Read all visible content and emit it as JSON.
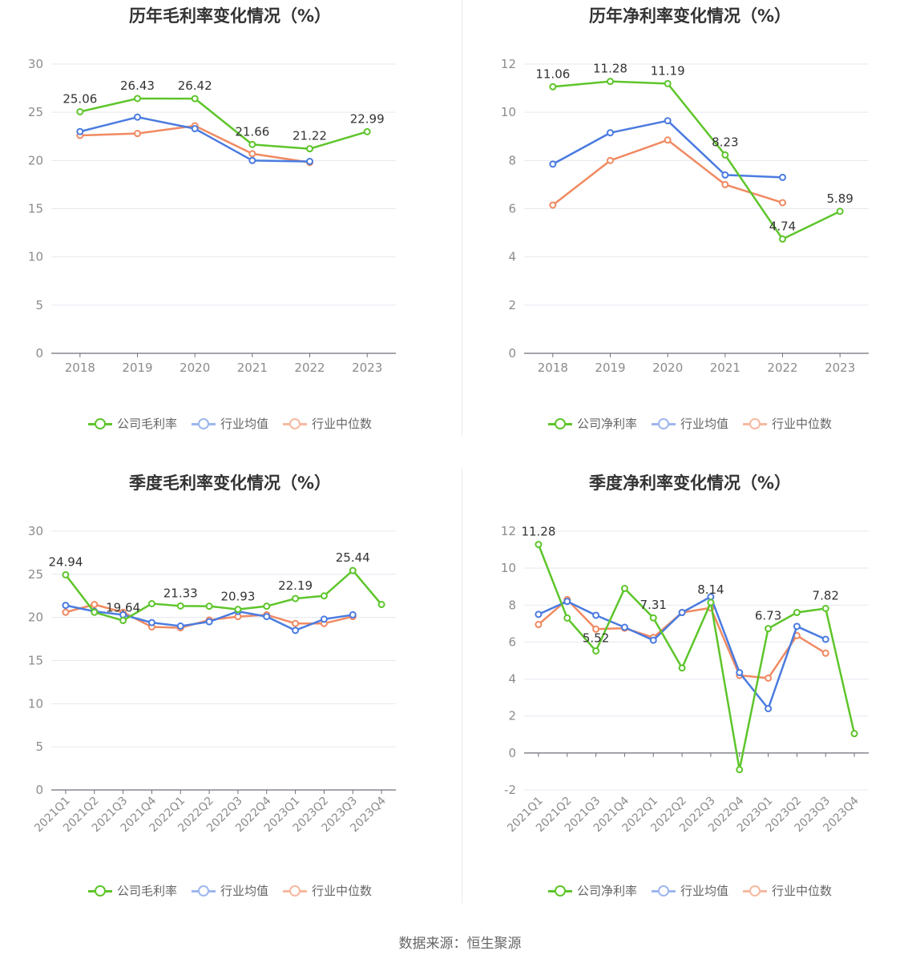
{
  "source_label": "数据来源：恒生聚源",
  "colors": {
    "company": "#5ec52b",
    "avg": "#4a7be0",
    "median": "#f08a62"
  },
  "chart_data": [
    {
      "type": "line",
      "title": "历年毛利率变化情况（%）",
      "categories": [
        "2018",
        "2019",
        "2020",
        "2021",
        "2022",
        "2023"
      ],
      "ylim": [
        0,
        30
      ],
      "yticks": [
        0,
        5,
        10,
        15,
        20,
        25,
        30
      ],
      "grid": true,
      "legend_position": "bottom",
      "series": [
        {
          "name": "公司毛利率",
          "values": [
            25.06,
            26.43,
            26.42,
            21.66,
            21.22,
            22.99
          ],
          "labels": [
            "25.06",
            "26.43",
            "26.42",
            "21.66",
            "21.22",
            "22.99"
          ]
        },
        {
          "name": "行业均值",
          "values": [
            23.0,
            24.5,
            23.3,
            20.0,
            19.9,
            null
          ]
        },
        {
          "name": "行业中位数",
          "values": [
            22.6,
            22.8,
            23.6,
            20.7,
            19.8,
            null
          ]
        }
      ]
    },
    {
      "type": "line",
      "title": "历年净利率变化情况（%）",
      "categories": [
        "2018",
        "2019",
        "2020",
        "2021",
        "2022",
        "2023"
      ],
      "ylim": [
        0,
        12
      ],
      "yticks": [
        0,
        2,
        4,
        6,
        8,
        10,
        12
      ],
      "grid": true,
      "legend_position": "bottom",
      "series": [
        {
          "name": "公司净利率",
          "values": [
            11.06,
            11.28,
            11.19,
            8.23,
            4.74,
            5.89
          ],
          "labels": [
            "11.06",
            "11.28",
            "11.19",
            "8.23",
            "4.74",
            "5.89"
          ]
        },
        {
          "name": "行业均值",
          "values": [
            7.85,
            9.15,
            9.65,
            7.4,
            7.3,
            null
          ]
        },
        {
          "name": "行业中位数",
          "values": [
            6.15,
            8.0,
            8.85,
            7.0,
            6.25,
            null
          ]
        }
      ]
    },
    {
      "type": "line",
      "title": "季度毛利率变化情况（%）",
      "categories": [
        "2021Q1",
        "2021Q2",
        "2021Q3",
        "2021Q4",
        "2022Q1",
        "2022Q2",
        "2022Q3",
        "2022Q4",
        "2023Q1",
        "2023Q2",
        "2023Q3",
        "2023Q4"
      ],
      "ylim": [
        0,
        30
      ],
      "yticks": [
        0,
        5,
        10,
        15,
        20,
        25,
        30
      ],
      "grid": true,
      "legend_position": "bottom",
      "series": [
        {
          "name": "公司毛利率",
          "values": [
            24.94,
            20.6,
            19.64,
            21.6,
            21.33,
            21.3,
            20.93,
            21.3,
            22.19,
            22.5,
            25.44,
            21.5
          ],
          "labels": [
            "24.94",
            "",
            "19.64",
            "",
            "21.33",
            "",
            "20.93",
            "",
            "22.19",
            "",
            "25.44",
            ""
          ]
        },
        {
          "name": "行业均值",
          "values": [
            21.4,
            20.7,
            20.3,
            19.4,
            19.0,
            19.5,
            20.7,
            20.1,
            18.5,
            19.8,
            20.3,
            null
          ]
        },
        {
          "name": "行业中位数",
          "values": [
            20.6,
            21.5,
            20.6,
            18.9,
            18.8,
            19.7,
            20.1,
            20.3,
            19.3,
            19.3,
            20.1,
            null
          ]
        }
      ]
    },
    {
      "type": "line",
      "title": "季度净利率变化情况（%）",
      "categories": [
        "2021Q1",
        "2021Q2",
        "2021Q3",
        "2021Q4",
        "2022Q1",
        "2022Q2",
        "2022Q3",
        "2022Q4",
        "2023Q1",
        "2023Q2",
        "2023Q3",
        "2023Q4"
      ],
      "ylim": [
        -2,
        12
      ],
      "yticks": [
        -2,
        0,
        2,
        4,
        6,
        8,
        10,
        12
      ],
      "grid": true,
      "legend_position": "bottom",
      "series": [
        {
          "name": "公司净利率",
          "values": [
            11.28,
            7.3,
            5.52,
            8.9,
            7.31,
            4.6,
            8.14,
            -0.9,
            6.73,
            7.6,
            7.82,
            1.05
          ],
          "labels": [
            "11.28",
            "",
            "5.52",
            "",
            "7.31",
            "",
            "8.14",
            "",
            "6.73",
            "",
            "7.82",
            ""
          ]
        },
        {
          "name": "行业均值",
          "values": [
            7.5,
            8.2,
            7.45,
            6.8,
            6.1,
            7.6,
            8.45,
            4.35,
            2.4,
            6.85,
            6.15,
            null
          ]
        },
        {
          "name": "行业中位数",
          "values": [
            6.95,
            8.3,
            6.7,
            6.75,
            6.25,
            7.6,
            7.85,
            4.2,
            4.05,
            6.35,
            5.4,
            null
          ]
        }
      ]
    }
  ]
}
